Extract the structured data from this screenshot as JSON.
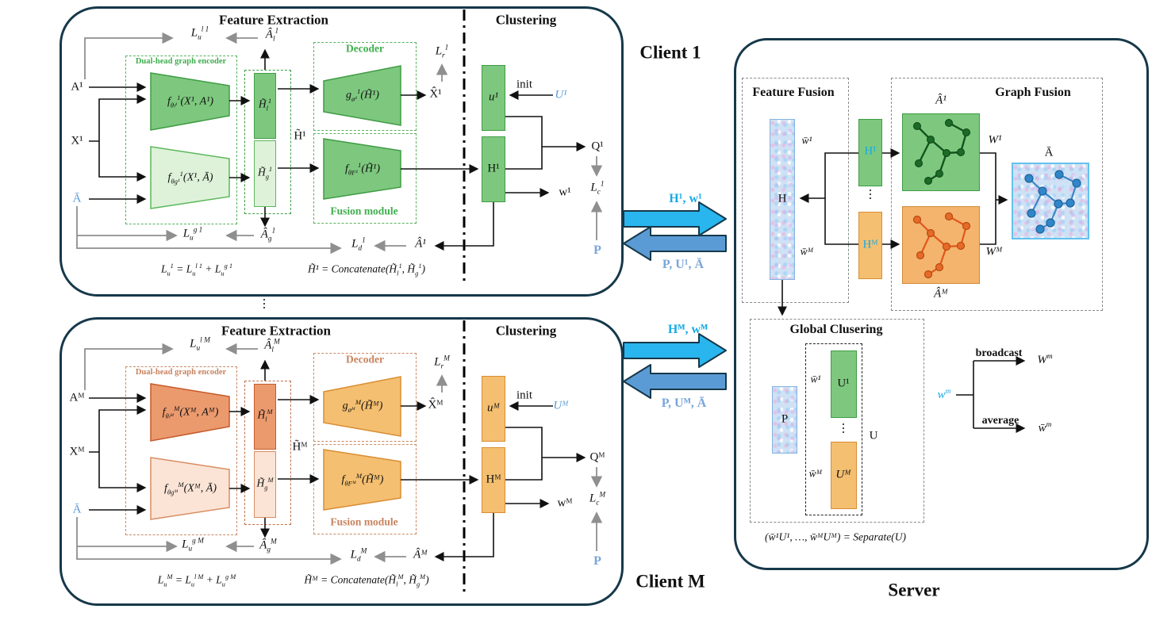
{
  "client1": {
    "panel_label": "Client 1",
    "feature_extraction_title": "Feature Extraction",
    "clustering_title": "Clustering",
    "inputs": {
      "a": "A¹",
      "x": "X¹",
      "abar": "Ā"
    },
    "encoder": {
      "box_label": "Dual-head graph encoder",
      "f_local": "f_{θₗ¹}^{1}(X¹, A¹)",
      "f_global": "f_{θg¹}^{1}(X¹, Ā)"
    },
    "bars": {
      "h_local": "H̃_{l}^{1}",
      "h_global": "H̃_{g}^{1}",
      "h_tilde": "H̃¹"
    },
    "decoder": {
      "label": "Decoder",
      "fn": "g_{ø¹}^{1}(H̃¹)",
      "x_hat": "X̂¹",
      "loss_r": "L_{r}^{1}"
    },
    "fusion": {
      "label": "Fusion module",
      "fn": "f_{θF¹}^{1}(H̃¹)"
    },
    "losses": {
      "lu_l": "L_{u}^{l 1}",
      "a_hat_l": "Â_{l}^{1}",
      "lu_g": "L_{u}^{g 1}",
      "a_hat_g": "Â_{g}^{1}",
      "ld": "L_{d}^{1}",
      "a_hat": "Â¹",
      "lc": "L_{c}^{1}"
    },
    "clustering": {
      "u_bar": "u¹",
      "init": "init",
      "u_init": "U¹",
      "h_bar": "H¹",
      "q": "Q¹",
      "w": "w¹",
      "p": "P"
    },
    "formula_lu": "L_{u}^{1} = L_{u}^{l 1} + L_{u}^{g 1}",
    "formula_h": "H̃¹ = Concatenate(H̃_{l}^{1}, H̃_{g}^{1})"
  },
  "clientM": {
    "panel_label": "Client M",
    "feature_extraction_title": "Feature Extraction",
    "clustering_title": "Clustering",
    "inputs": {
      "a": "Aᴹ",
      "x": "Xᴹ",
      "abar": "Ā"
    },
    "encoder": {
      "box_label": "Dual-head graph encoder",
      "f_local": "f_{θₗᴹ}^{M}(Xᴹ, Aᴹ)",
      "f_global": "f_{θgᴹ}^{M}(Xᴹ, Ā)"
    },
    "bars": {
      "h_local": "H̃_{l}^{M}",
      "h_global": "H̃_{g}^{M}",
      "h_tilde": "H̃ᴹ"
    },
    "decoder": {
      "label": "Decoder",
      "fn": "g_{øᴹ}^{M}(H̃ᴹ)",
      "x_hat": "X̂ᴹ",
      "loss_r": "L_{r}^{M}"
    },
    "fusion": {
      "label": "Fusion module",
      "fn": "f_{θFᴹ}^{M}(H̃ᴹ)"
    },
    "losses": {
      "lu_l": "L_{u}^{l M}",
      "a_hat_l": "Â_{l}^{M}",
      "lu_g": "L_{u}^{g M}",
      "a_hat_g": "Â_{g}^{M}",
      "ld": "L_{d}^{M}",
      "a_hat": "Âᴹ",
      "lc": "L_{c}^{M}"
    },
    "clustering": {
      "u_bar": "uᴹ",
      "init": "init",
      "u_init": "Uᴹ",
      "h_bar": "Hᴹ",
      "q": "Qᴹ",
      "w": "wᴹ",
      "p": "P"
    },
    "formula_lu": "L_{u}^{M} = L_{u}^{l M} + L_{u}^{g M}",
    "formula_h": "H̃ᴹ = Concatenate(H̃_{l}^{M}, H̃_{g}^{M})"
  },
  "between_clients_dots": "⋮",
  "transfers": {
    "up1": "H¹, w¹",
    "down1": "P, U¹, Ā",
    "upM": "Hᴹ, wᴹ",
    "downM": "P, Uᴹ, Ā"
  },
  "server": {
    "panel_label": "Server",
    "feature_fusion": {
      "title": "Feature Fusion",
      "h": "H",
      "wbar1": "w̄¹",
      "wbarM": "w̄ᴹ",
      "h1": "H¹",
      "hM": "Hᴹ",
      "dots": "⋮"
    },
    "graph_fusion": {
      "title": "Graph Fusion",
      "a_hat_1": "Â¹",
      "a_hat_M": "Âᴹ",
      "w1": "W¹",
      "wM": "Wᴹ",
      "a_bar": "Ā"
    },
    "global_clustering": {
      "title": "Global Clusering",
      "p": "P",
      "wbar1": "w̄¹",
      "u1": "U¹",
      "dots": "⋮",
      "wbarM": "w̄ᴹ",
      "uM": "Uᴹ",
      "u": "U",
      "formula": "(w̄¹U¹, …, w̄ᴹUᴹ) = Separate(U)"
    },
    "weights": {
      "wm": "w^{m}",
      "broadcast": "broadcast",
      "Wm": "W^{m}",
      "average": "average",
      "wbar_m": "w̄^{m}"
    }
  },
  "colors": {
    "client_border": "#16384a",
    "green": "#7dc87e",
    "green_light": "#def2d9",
    "orange": "#eb9a6e",
    "orange_light": "#fbe4d6",
    "gold": "#f4bf70",
    "cyan_arrow": "#29b5ee",
    "blue_arrow": "#5b9bd5",
    "blue_text": "#5b9bd5",
    "cyan_text": "#18aae4"
  }
}
